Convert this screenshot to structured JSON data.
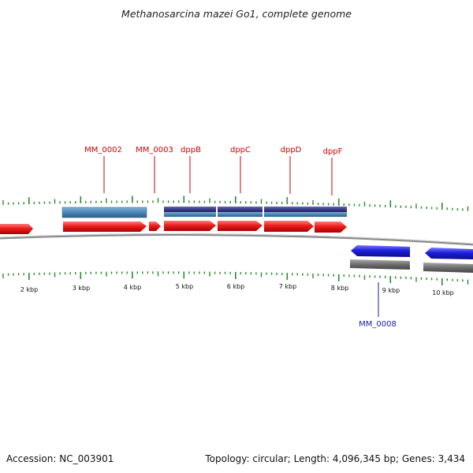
{
  "title": "Methanosarcina mazei Go1, complete genome",
  "footer": {
    "accession": "Accession: NC_003901",
    "summary": "Topology: circular; Length: 4,096,345 bp; Genes: 3,434"
  },
  "colors": {
    "forward_gene": "#ee1c1c",
    "reverse_gene": "#1e1edc",
    "forward_label": "#cc0000",
    "reverse_label": "#1a1ab0",
    "feature_light": "#4a86b8",
    "feature_dark": "#3a3a8a",
    "feature_gray": "#6e6e6e",
    "tick": "#2a8a2a",
    "backbone": "#777777"
  },
  "scale": {
    "labels": [
      "2 kbp",
      "3 kbp",
      "4 kbp",
      "5 kbp",
      "6 kbp",
      "7 kbp",
      "8 kbp",
      "9 kbp",
      "10 kbp"
    ]
  },
  "genes_forward": [
    {
      "label": "MM_0002"
    },
    {
      "label": "MM_0003"
    },
    {
      "label": "dppB"
    },
    {
      "label": "dppC"
    },
    {
      "label": "dppD"
    },
    {
      "label": "dppF"
    }
  ],
  "genes_reverse": [
    {
      "label": "MM_0008"
    }
  ]
}
